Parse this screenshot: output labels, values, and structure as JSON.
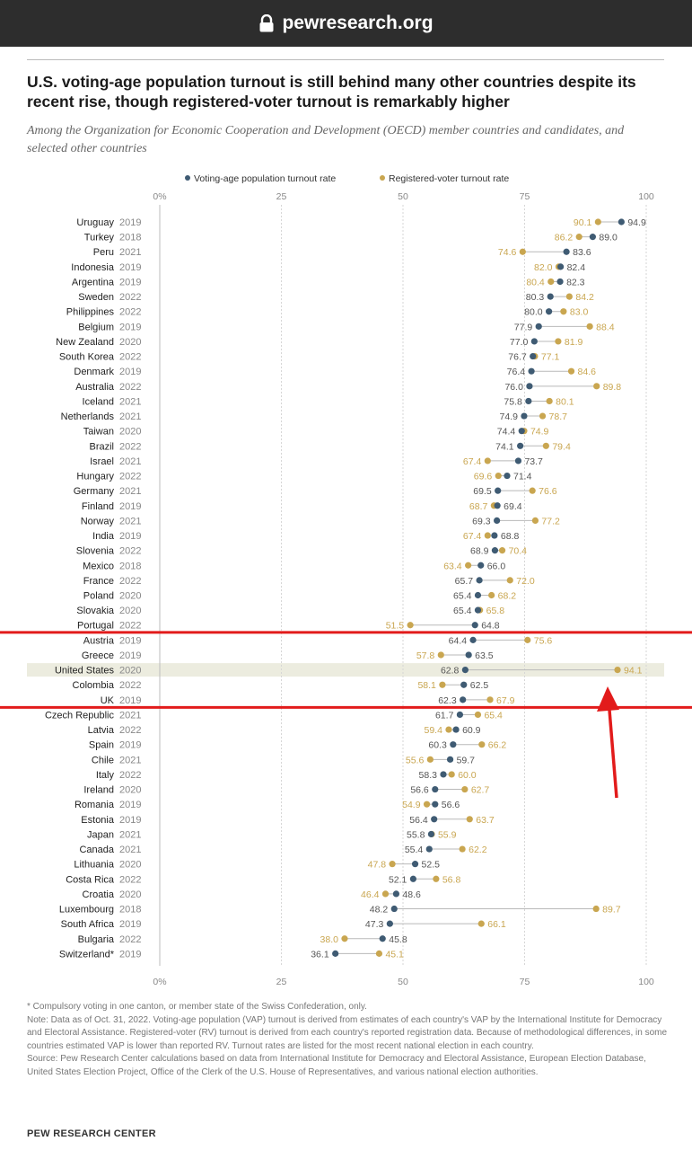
{
  "browser": {
    "url": "pewresearch.org",
    "icon": "lock-icon"
  },
  "title": "U.S. voting-age population turnout is still behind many other countries despite its recent rise, though registered-voter turnout is remarkably higher",
  "subtitle": "Among the Organization for Economic Cooperation and Development (OECD) member countries and candidates, and selected other countries",
  "colors": {
    "vap": "#3f5b73",
    "rv": "#c9a650",
    "highlight_box": "#e21b1b",
    "highlight_row": "#ececdf",
    "arrow": "#e21b1b"
  },
  "chart_data": {
    "type": "scatter",
    "orientation": "horizontal-dot",
    "xlim": [
      0,
      100
    ],
    "ticks": [
      "0%",
      "25",
      "50",
      "75",
      "100"
    ],
    "tick_values": [
      0,
      25,
      50,
      75,
      100
    ],
    "legend": {
      "position": "top",
      "entries": [
        "Voting-age population turnout rate",
        "Registered-voter turnout rate"
      ]
    },
    "highlighted_country": "United States",
    "rows": [
      {
        "country": "Uruguay",
        "year": "2019",
        "vap": 94.9,
        "rv": 90.1
      },
      {
        "country": "Turkey",
        "year": "2018",
        "vap": 89.0,
        "rv": 86.2
      },
      {
        "country": "Peru",
        "year": "2021",
        "vap": 83.6,
        "rv": 74.6
      },
      {
        "country": "Indonesia",
        "year": "2019",
        "vap": 82.4,
        "rv": 82.0
      },
      {
        "country": "Argentina",
        "year": "2019",
        "vap": 82.3,
        "rv": 80.4
      },
      {
        "country": "Sweden",
        "year": "2022",
        "vap": 80.3,
        "rv": 84.2
      },
      {
        "country": "Philippines",
        "year": "2022",
        "vap": 80.0,
        "rv": 83.0
      },
      {
        "country": "Belgium",
        "year": "2019",
        "vap": 77.9,
        "rv": 88.4
      },
      {
        "country": "New Zealand",
        "year": "2020",
        "vap": 77.0,
        "rv": 81.9
      },
      {
        "country": "South Korea",
        "year": "2022",
        "vap": 76.7,
        "rv": 77.1
      },
      {
        "country": "Denmark",
        "year": "2019",
        "vap": 76.4,
        "rv": 84.6
      },
      {
        "country": "Australia",
        "year": "2022",
        "vap": 76.0,
        "rv": 89.8
      },
      {
        "country": "Iceland",
        "year": "2021",
        "vap": 75.8,
        "rv": 80.1
      },
      {
        "country": "Netherlands",
        "year": "2021",
        "vap": 74.9,
        "rv": 78.7
      },
      {
        "country": "Taiwan",
        "year": "2020",
        "vap": 74.4,
        "rv": 74.9
      },
      {
        "country": "Brazil",
        "year": "2022",
        "vap": 74.1,
        "rv": 79.4
      },
      {
        "country": "Israel",
        "year": "2021",
        "vap": 73.7,
        "rv": 67.4
      },
      {
        "country": "Hungary",
        "year": "2022",
        "vap": 71.4,
        "rv": 69.6
      },
      {
        "country": "Germany",
        "year": "2021",
        "vap": 69.5,
        "rv": 76.6
      },
      {
        "country": "Finland",
        "year": "2019",
        "vap": 69.4,
        "rv": 68.7
      },
      {
        "country": "Norway",
        "year": "2021",
        "vap": 69.3,
        "rv": 77.2
      },
      {
        "country": "India",
        "year": "2019",
        "vap": 68.8,
        "rv": 67.4
      },
      {
        "country": "Slovenia",
        "year": "2022",
        "vap": 68.9,
        "rv": 70.4
      },
      {
        "country": "Mexico",
        "year": "2018",
        "vap": 66.0,
        "rv": 63.4
      },
      {
        "country": "France",
        "year": "2022",
        "vap": 65.7,
        "rv": 72.0
      },
      {
        "country": "Poland",
        "year": "2020",
        "vap": 65.4,
        "rv": 68.2
      },
      {
        "country": "Slovakia",
        "year": "2020",
        "vap": 65.4,
        "rv": 65.8
      },
      {
        "country": "Portugal",
        "year": "2022",
        "vap": 64.8,
        "rv": 51.5
      },
      {
        "country": "Austria",
        "year": "2019",
        "vap": 64.4,
        "rv": 75.6
      },
      {
        "country": "Greece",
        "year": "2019",
        "vap": 63.5,
        "rv": 57.8
      },
      {
        "country": "United States",
        "year": "2020",
        "vap": 62.8,
        "rv": 94.1
      },
      {
        "country": "Colombia",
        "year": "2022",
        "vap": 62.5,
        "rv": 58.1
      },
      {
        "country": "UK",
        "year": "2019",
        "vap": 62.3,
        "rv": 67.9
      },
      {
        "country": "Czech Republic",
        "year": "2021",
        "vap": 61.7,
        "rv": 65.4
      },
      {
        "country": "Latvia",
        "year": "2022",
        "vap": 60.9,
        "rv": 59.4
      },
      {
        "country": "Spain",
        "year": "2019",
        "vap": 60.3,
        "rv": 66.2
      },
      {
        "country": "Chile",
        "year": "2021",
        "vap": 59.7,
        "rv": 55.6
      },
      {
        "country": "Italy",
        "year": "2022",
        "vap": 58.3,
        "rv": 60.0
      },
      {
        "country": "Ireland",
        "year": "2020",
        "vap": 56.6,
        "rv": 62.7
      },
      {
        "country": "Romania",
        "year": "2019",
        "vap": 56.6,
        "rv": 54.9
      },
      {
        "country": "Estonia",
        "year": "2019",
        "vap": 56.4,
        "rv": 63.7
      },
      {
        "country": "Japan",
        "year": "2021",
        "vap": 55.8,
        "rv": 55.9
      },
      {
        "country": "Canada",
        "year": "2021",
        "vap": 55.4,
        "rv": 62.2
      },
      {
        "country": "Lithuania",
        "year": "2020",
        "vap": 52.5,
        "rv": 47.8
      },
      {
        "country": "Costa Rica",
        "year": "2022",
        "vap": 52.1,
        "rv": 56.8
      },
      {
        "country": "Croatia",
        "year": "2020",
        "vap": 48.6,
        "rv": 46.4
      },
      {
        "country": "Luxembourg",
        "year": "2018",
        "vap": 48.2,
        "rv": 89.7
      },
      {
        "country": "South Africa",
        "year": "2019",
        "vap": 47.3,
        "rv": 66.1
      },
      {
        "country": "Bulgaria",
        "year": "2022",
        "vap": 45.8,
        "rv": 38.0
      },
      {
        "country": "Switzerland*",
        "year": "2019",
        "vap": 36.1,
        "rv": 45.1
      }
    ]
  },
  "footnotes": [
    "* Compulsory voting in one canton, or member state of the Swiss Confederation, only.",
    "Note: Data as of Oct. 31, 2022. Voting-age population (VAP) turnout is derived from estimates of each country's VAP by the International Institute for Democracy and Electoral Assistance. Registered-voter (RV) turnout is derived from each country's reported registration data. Because of methodological differences, in some countries estimated VAP is lower than reported RV. Turnout rates are listed for the most recent national election in each country.",
    "Source: Pew Research Center calculations based on data from International Institute for Democracy and Electoral Assistance, European Election Database, United States Election Project, Office of the Clerk of the U.S. House of Representatives, and various national election authorities."
  ],
  "brand": "PEW RESEARCH CENTER"
}
